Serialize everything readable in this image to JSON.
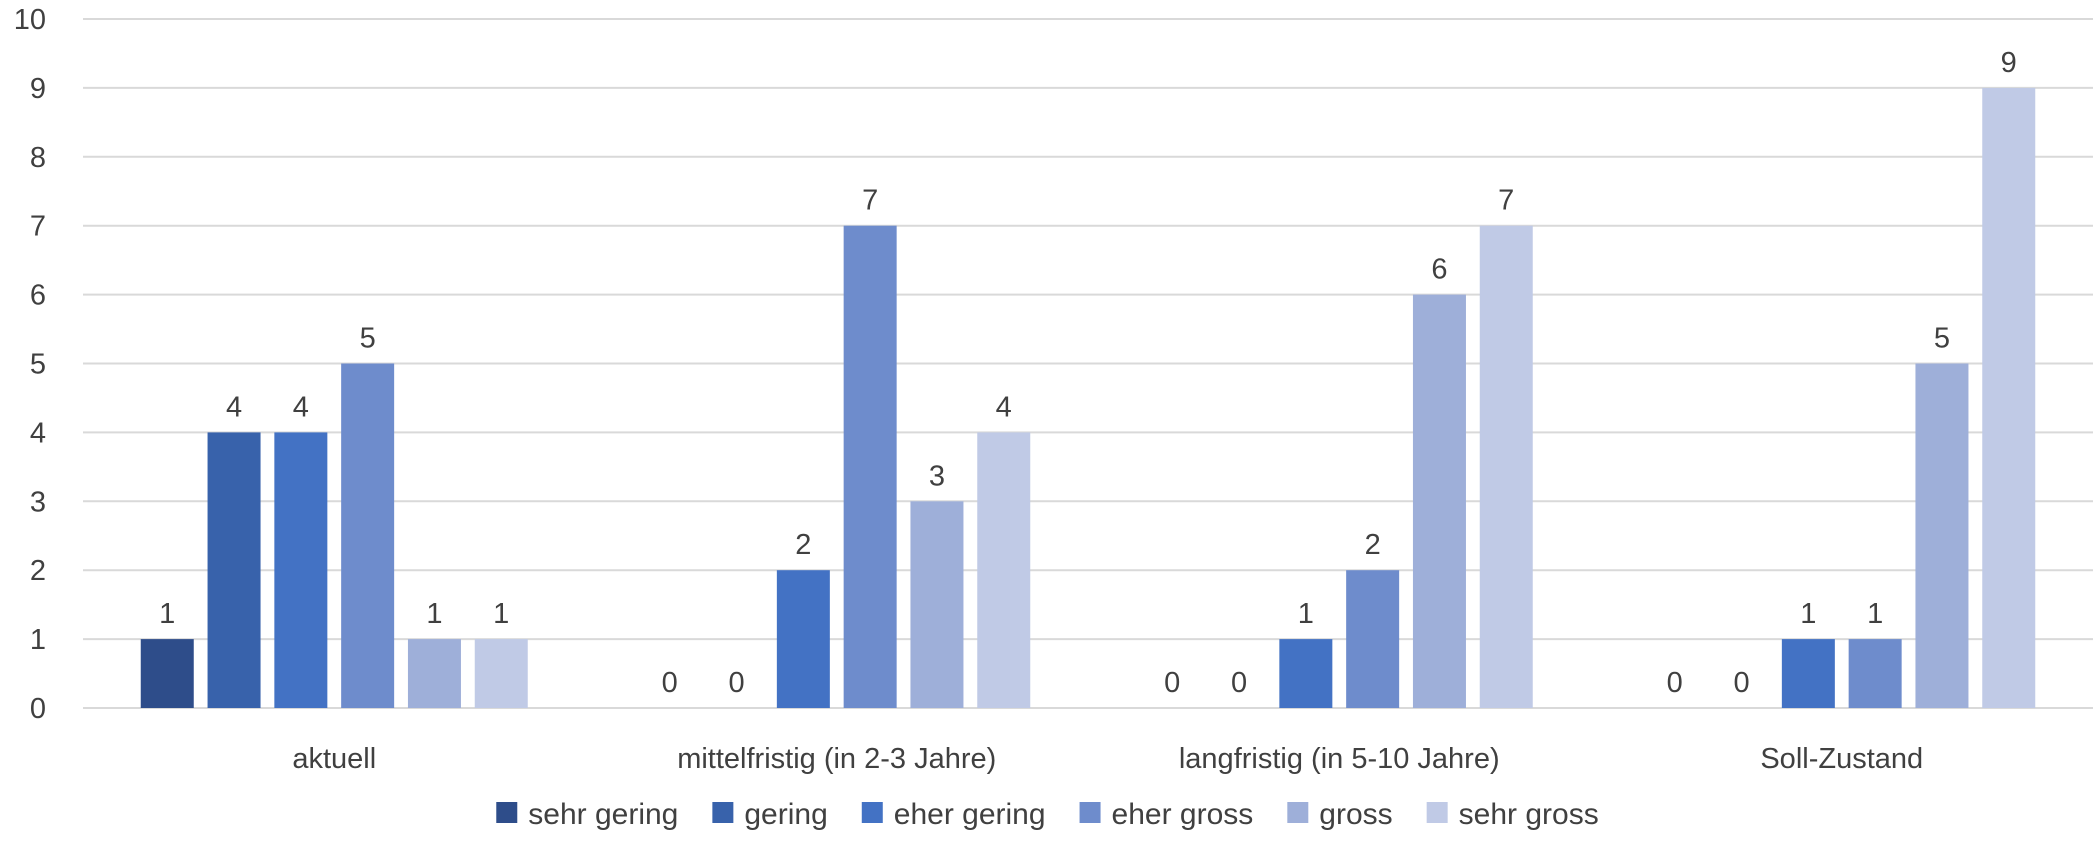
{
  "chart_data": {
    "type": "bar",
    "categories": [
      "aktuell",
      "mittelfristig (in 2-3 Jahre)",
      "langfristig (in 5-10 Jahre)",
      "Soll-Zustand"
    ],
    "series": [
      {
        "name": "sehr gering",
        "color": "#2e4d8a",
        "values": [
          1,
          0,
          0,
          0
        ]
      },
      {
        "name": "gering",
        "color": "#3862ab",
        "values": [
          4,
          0,
          0,
          0
        ]
      },
      {
        "name": "eher gering",
        "color": "#4372c4",
        "values": [
          4,
          2,
          1,
          1
        ]
      },
      {
        "name": "eher gross",
        "color": "#6e8ccc",
        "values": [
          5,
          7,
          2,
          1
        ]
      },
      {
        "name": "gross",
        "color": "#9eafd9",
        "values": [
          1,
          3,
          6,
          5
        ]
      },
      {
        "name": "sehr gross",
        "color": "#c0cae6",
        "values": [
          1,
          4,
          7,
          9
        ]
      }
    ],
    "ylim": [
      0,
      10
    ],
    "yticks": [
      "0",
      "1",
      "2",
      "3",
      "4",
      "5",
      "6",
      "7",
      "8",
      "9",
      "10"
    ],
    "grid": true,
    "legend": "bottom",
    "data_labels": true
  }
}
